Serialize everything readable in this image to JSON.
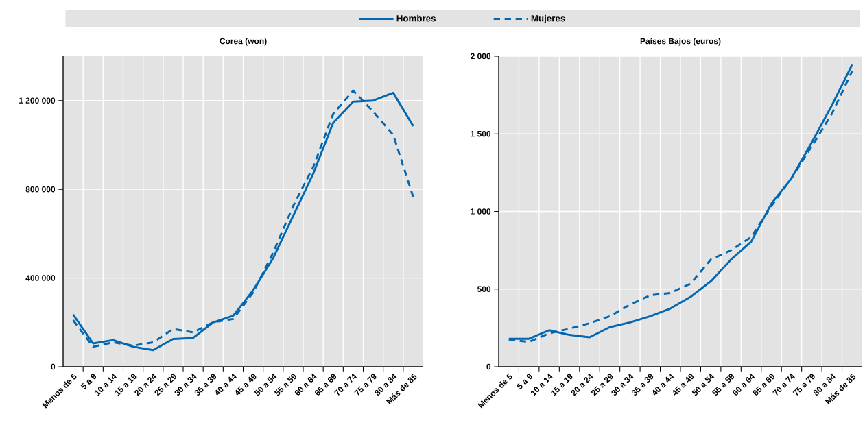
{
  "chart_data": [
    {
      "type": "line",
      "title": "Corea (won)",
      "categories": [
        "Menos de 5",
        "5 a 9",
        "10 a 14",
        "15 a 19",
        "20 a 24",
        "25 a 29",
        "30 a 34",
        "35 a 39",
        "40 a 44",
        "45 a 49",
        "50 a 54",
        "55 a 59",
        "60 a 64",
        "65 a 69",
        "70 a 74",
        "75 a 79",
        "80 a 84",
        "Más de 85"
      ],
      "series": [
        {
          "name": "Hombres",
          "color": "#0067b0",
          "line_style": "solid",
          "values": [
            235000,
            105000,
            120000,
            90000,
            75000,
            125000,
            130000,
            200000,
            230000,
            345000,
            490000,
            680000,
            870000,
            1100000,
            1195000,
            1200000,
            1235000,
            1085000
          ]
        },
        {
          "name": "Mujeres",
          "color": "#0067b0",
          "line_style": "dashed",
          "values": [
            210000,
            90000,
            110000,
            95000,
            110000,
            170000,
            155000,
            200000,
            215000,
            335000,
            515000,
            725000,
            900000,
            1140000,
            1245000,
            1150000,
            1045000,
            765000
          ]
        }
      ],
      "ylim": [
        0,
        1400000
      ],
      "yticks": [
        0,
        {
          "value": 400000,
          "label": "400 000"
        },
        {
          "value": 800000,
          "label": "800 000"
        },
        {
          "value": 1200000,
          "label": "1 200 000"
        }
      ],
      "grid": true,
      "legend": "top",
      "marker": "none"
    },
    {
      "type": "line",
      "title": "Países Bajos (euros)",
      "categories": [
        "Menos de 5",
        "5 a 9",
        "10 a 14",
        "15 a 19",
        "20 a 24",
        "25 a 29",
        "30 a 34",
        "35 a 39",
        "40 a 44",
        "45 a 49",
        "50 a 54",
        "55 a 59",
        "60 a 64",
        "65 a 69",
        "70 a 74",
        "75 a 79",
        "80 a 84",
        "Más de 85"
      ],
      "series": [
        {
          "color": "#0067b0",
          "line_style": "solid",
          "values": [
            180,
            180,
            235,
            205,
            190,
            255,
            285,
            325,
            375,
            450,
            550,
            690,
            805,
            1050,
            1215,
            1445,
            1685,
            1945
          ]
        },
        {
          "color": "#0067b0",
          "line_style": "dashed",
          "values": [
            175,
            160,
            215,
            245,
            280,
            325,
            400,
            460,
            475,
            535,
            690,
            750,
            835,
            1035,
            1215,
            1420,
            1630,
            1905
          ]
        }
      ],
      "ylim": [
        0,
        2000
      ],
      "yticks": [
        0,
        500,
        {
          "value": 1000,
          "label": "1 000"
        },
        {
          "value": 1500,
          "label": "1 500"
        },
        {
          "value": 2000,
          "label": "2 000"
        }
      ],
      "grid": true,
      "marker": "none"
    }
  ]
}
